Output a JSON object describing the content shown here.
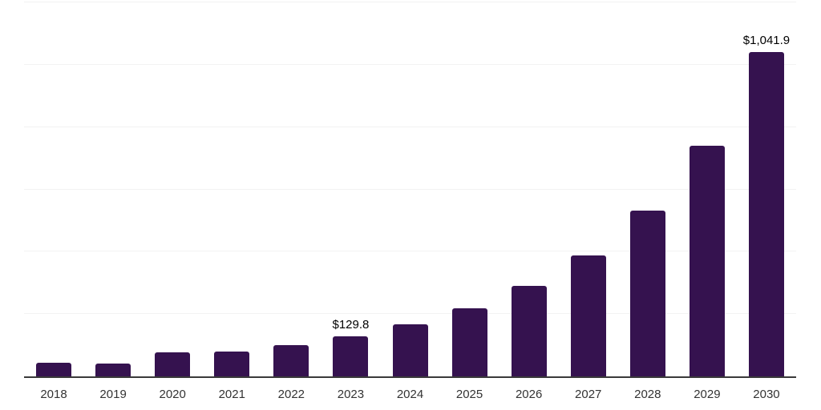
{
  "chart_data": {
    "type": "bar",
    "categories": [
      "2018",
      "2019",
      "2020",
      "2021",
      "2022",
      "2023",
      "2024",
      "2025",
      "2026",
      "2027",
      "2028",
      "2029",
      "2030"
    ],
    "values": [
      43,
      42,
      78,
      80,
      100,
      129.8,
      166,
      219,
      290,
      388,
      532,
      739,
      1041.9
    ],
    "data_labels": [
      "",
      "",
      "",
      "",
      "",
      "$129.8",
      "",
      "",
      "",
      "",
      "",
      "",
      "$1,041.9"
    ],
    "title": "",
    "xlabel": "",
    "ylabel": "",
    "ylim": [
      0,
      1200
    ],
    "gridline_interval": 200,
    "grid": true,
    "legend_position": "none",
    "y_tick_labels_visible": false
  },
  "colors": {
    "bar": "#35124F",
    "axis": "#3a3a3a",
    "gridline": "#f2f2f2",
    "data_label_text": "#000000",
    "tick_text": "#333333",
    "background": "#ffffff"
  }
}
